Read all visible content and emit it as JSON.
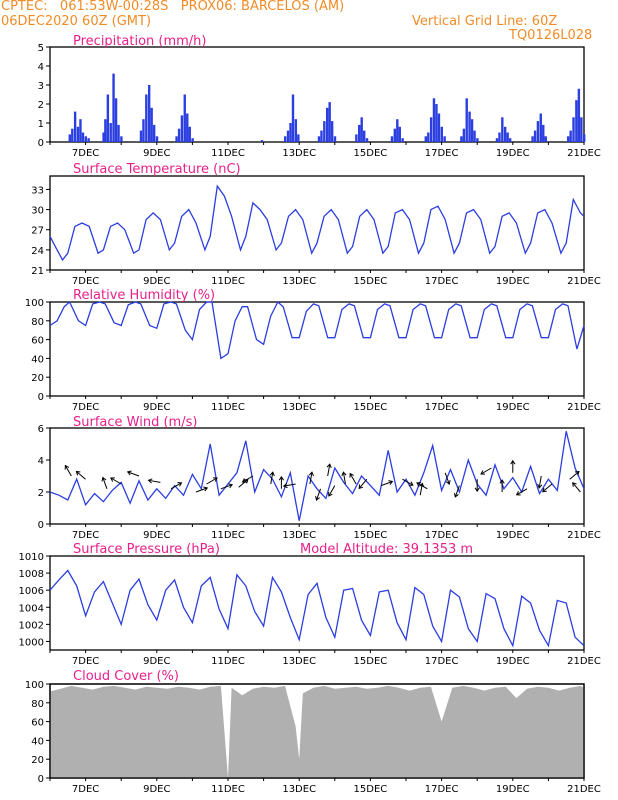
{
  "header": {
    "line1_left": "CPTEC:   061:53W-00:28S   PROX06: BARCELOS (AM)",
    "line2_left": "06DEC2020 60Z (GMT)",
    "line2_right": "Vertical Grid Line: 60Z",
    "line3_right": "TQ0126L028"
  },
  "colors": {
    "header": "#f08c28",
    "title": "#e8208a",
    "series": "#2b3ee0",
    "cloud": "#b0b0b0",
    "axis": "#000000"
  },
  "x_axis": {
    "start_date": "06DEC2020",
    "tick_labels": [
      "7DEC",
      "9DEC",
      "11DEC",
      "13DEC",
      "15DEC",
      "17DEC",
      "19DEC",
      "21DEC"
    ],
    "tick_days": [
      7,
      9,
      11,
      13,
      15,
      17,
      19,
      21
    ]
  },
  "chart_data": [
    {
      "id": "precip",
      "type": "bar",
      "title": "Precipitation (mm/h)",
      "ylim": [
        0,
        5
      ],
      "yticks": [
        "0",
        "1",
        "2",
        "3",
        "4",
        "5"
      ],
      "series": [
        {
          "x": [
            6.55,
            6.62,
            6.7,
            6.78,
            6.85,
            6.92,
            7.0,
            7.08,
            7.5,
            7.55,
            7.62,
            7.7,
            7.78,
            7.85,
            7.92,
            8.0,
            8.55,
            8.62,
            8.7,
            8.78,
            8.85,
            8.92,
            9.0,
            9.55,
            9.62,
            9.7,
            9.78,
            9.85,
            9.92,
            10.0,
            11.95,
            12.6,
            12.68,
            12.75,
            12.82,
            12.9,
            12.97,
            13.55,
            13.62,
            13.7,
            13.78,
            13.85,
            13.92,
            14.0,
            14.6,
            14.68,
            14.75,
            14.82,
            14.9,
            15.6,
            15.68,
            15.75,
            15.82,
            15.9,
            16.55,
            16.62,
            16.7,
            16.78,
            16.85,
            16.92,
            17.0,
            17.08,
            17.55,
            17.62,
            17.7,
            17.78,
            17.85,
            17.92,
            18.0,
            18.55,
            18.62,
            18.7,
            18.78,
            18.85,
            18.92,
            19.55,
            19.62,
            19.7,
            19.78,
            19.85,
            19.92,
            20.55,
            20.62,
            20.7,
            20.78,
            20.85,
            20.92,
            21.0
          ],
          "values": [
            0.4,
            0.7,
            1.6,
            0.8,
            1.2,
            0.5,
            0.3,
            0.2,
            0.5,
            1.2,
            2.5,
            1.0,
            3.6,
            2.3,
            0.9,
            0.3,
            0.6,
            1.2,
            2.5,
            3.0,
            1.8,
            0.9,
            0.3,
            0.3,
            0.7,
            1.4,
            2.5,
            1.5,
            0.8,
            0.2,
            0.1,
            0.3,
            0.6,
            1.0,
            2.5,
            1.2,
            0.4,
            0.3,
            0.6,
            1.1,
            1.8,
            2.1,
            1.1,
            0.3,
            0.4,
            0.9,
            1.3,
            0.6,
            0.2,
            0.3,
            0.7,
            1.2,
            0.8,
            0.2,
            0.3,
            0.5,
            1.3,
            2.3,
            2.0,
            1.5,
            0.8,
            0.3,
            0.3,
            0.7,
            2.3,
            1.6,
            1.2,
            0.6,
            0.2,
            0.2,
            0.5,
            1.3,
            0.8,
            0.5,
            0.2,
            0.3,
            0.6,
            1.1,
            1.5,
            0.9,
            0.3,
            0.3,
            0.6,
            1.3,
            2.2,
            2.8,
            1.3,
            0.4
          ]
        }
      ]
    },
    {
      "id": "temp",
      "type": "line",
      "title": "Surface Temperature (nC)",
      "ylim": [
        21,
        35
      ],
      "yticks": [
        "21",
        "24",
        "27",
        "30",
        "33"
      ],
      "series": [
        {
          "x": [
            6.0,
            6.2,
            6.35,
            6.5,
            6.7,
            6.9,
            7.1,
            7.35,
            7.5,
            7.7,
            7.9,
            8.1,
            8.35,
            8.5,
            8.7,
            8.9,
            9.1,
            9.35,
            9.5,
            9.7,
            9.9,
            10.1,
            10.35,
            10.5,
            10.7,
            10.9,
            11.1,
            11.35,
            11.5,
            11.7,
            11.9,
            12.1,
            12.35,
            12.5,
            12.7,
            12.9,
            13.1,
            13.35,
            13.5,
            13.7,
            13.9,
            14.1,
            14.35,
            14.5,
            14.7,
            14.9,
            15.1,
            15.35,
            15.5,
            15.7,
            15.9,
            16.1,
            16.35,
            16.5,
            16.7,
            16.9,
            17.1,
            17.35,
            17.5,
            17.7,
            17.9,
            18.1,
            18.35,
            18.5,
            18.7,
            18.9,
            19.1,
            19.35,
            19.5,
            19.7,
            19.9,
            20.1,
            20.35,
            20.5,
            20.7,
            20.9,
            21.0
          ],
          "values": [
            26.0,
            24.0,
            22.5,
            23.5,
            27.5,
            28.0,
            27.5,
            23.5,
            24.0,
            27.5,
            28.0,
            27.0,
            23.5,
            24.0,
            28.5,
            29.5,
            28.5,
            24.0,
            25.0,
            29.0,
            30.0,
            28.0,
            24.0,
            26.0,
            33.5,
            32.0,
            29.0,
            24.0,
            26.0,
            31.0,
            30.0,
            28.5,
            24.0,
            25.0,
            29.0,
            30.0,
            28.5,
            23.5,
            25.0,
            29.0,
            30.0,
            28.5,
            23.5,
            24.5,
            29.0,
            30.0,
            28.5,
            23.5,
            24.5,
            29.5,
            30.0,
            28.5,
            23.5,
            25.0,
            30.0,
            30.5,
            28.5,
            23.5,
            25.0,
            29.5,
            30.0,
            28.5,
            23.5,
            24.5,
            29.0,
            29.5,
            28.0,
            23.5,
            25.0,
            29.5,
            30.0,
            28.0,
            23.5,
            25.0,
            31.5,
            29.5,
            29.0
          ]
        }
      ]
    },
    {
      "id": "rh",
      "type": "line",
      "title": "Relative Humidity (%)",
      "ylim": [
        0,
        100
      ],
      "yticks": [
        "0",
        "20",
        "40",
        "60",
        "80",
        "100"
      ],
      "series": [
        {
          "x": [
            6.0,
            6.2,
            6.4,
            6.55,
            6.8,
            7.0,
            7.2,
            7.4,
            7.55,
            7.8,
            8.0,
            8.2,
            8.4,
            8.55,
            8.8,
            9.0,
            9.2,
            9.4,
            9.55,
            9.8,
            10.0,
            10.2,
            10.4,
            10.55,
            10.8,
            11.0,
            11.2,
            11.4,
            11.55,
            11.8,
            12.0,
            12.2,
            12.4,
            12.55,
            12.8,
            13.0,
            13.2,
            13.4,
            13.55,
            13.8,
            14.0,
            14.2,
            14.4,
            14.55,
            14.8,
            15.0,
            15.2,
            15.4,
            15.55,
            15.8,
            16.0,
            16.2,
            16.4,
            16.55,
            16.8,
            17.0,
            17.2,
            17.4,
            17.55,
            17.8,
            18.0,
            18.2,
            18.4,
            18.55,
            18.8,
            19.0,
            19.2,
            19.4,
            19.55,
            19.8,
            20.0,
            20.2,
            20.4,
            20.55,
            20.8,
            21.0
          ],
          "values": [
            75,
            80,
            95,
            100,
            80,
            75,
            98,
            100,
            98,
            78,
            75,
            97,
            100,
            98,
            75,
            72,
            98,
            100,
            98,
            70,
            60,
            92,
            100,
            100,
            40,
            45,
            80,
            95,
            95,
            60,
            55,
            85,
            100,
            95,
            62,
            62,
            90,
            98,
            96,
            62,
            62,
            92,
            98,
            96,
            62,
            62,
            92,
            98,
            96,
            62,
            62,
            92,
            98,
            96,
            62,
            62,
            92,
            98,
            96,
            62,
            62,
            92,
            98,
            96,
            62,
            62,
            92,
            98,
            96,
            62,
            62,
            92,
            98,
            96,
            50,
            75
          ]
        }
      ]
    },
    {
      "id": "wind",
      "type": "line",
      "title": "Surface Wind (m/s)",
      "ylim": [
        0,
        6
      ],
      "yticks": [
        "0",
        "2",
        "4",
        "6"
      ],
      "series": [
        {
          "x": [
            6.0,
            6.25,
            6.5,
            6.75,
            7.0,
            7.25,
            7.5,
            7.75,
            8.0,
            8.25,
            8.5,
            8.75,
            9.0,
            9.25,
            9.5,
            9.75,
            10.0,
            10.25,
            10.5,
            10.75,
            11.0,
            11.25,
            11.5,
            11.75,
            12.0,
            12.25,
            12.5,
            12.75,
            13.0,
            13.25,
            13.5,
            13.75,
            14.0,
            14.25,
            14.5,
            14.75,
            15.0,
            15.25,
            15.5,
            15.75,
            16.0,
            16.25,
            16.5,
            16.75,
            17.0,
            17.25,
            17.5,
            17.75,
            18.0,
            18.25,
            18.5,
            18.75,
            19.0,
            19.25,
            19.5,
            19.75,
            20.0,
            20.25,
            20.5,
            20.75,
            21.0
          ],
          "values": [
            2.0,
            1.8,
            1.5,
            2.8,
            1.2,
            1.9,
            1.4,
            2.1,
            2.6,
            1.3,
            2.7,
            1.5,
            2.2,
            1.6,
            2.4,
            1.8,
            3.1,
            2.2,
            5.0,
            1.8,
            2.5,
            3.2,
            5.2,
            2.0,
            3.4,
            2.8,
            1.7,
            3.2,
            0.2,
            3.0,
            2.2,
            1.6,
            3.5,
            2.6,
            1.9,
            3.0,
            2.4,
            1.8,
            4.6,
            2.0,
            2.8,
            1.8,
            3.2,
            4.9,
            2.1,
            3.4,
            2.0,
            4.0,
            2.5,
            1.8,
            3.7,
            2.2,
            2.9,
            2.0,
            3.6,
            1.9,
            2.8,
            2.1,
            5.8,
            3.5,
            2.2
          ]
        }
      ],
      "arrows": {
        "x": [
          6.6,
          7.0,
          7.6,
          8.0,
          8.5,
          9.1,
          9.4,
          10.1,
          10.4,
          10.8,
          11.3,
          11.7,
          12.2,
          12.5,
          12.9,
          13.3,
          13.6,
          13.8,
          14.0,
          14.3,
          14.6,
          14.9,
          15.3,
          15.9,
          16.4,
          16.6,
          17.1,
          17.5,
          18.0,
          18.4,
          18.7,
          19.0,
          19.4,
          19.8,
          20.1,
          20.6,
          20.9
        ],
        "y": [
          3.0,
          2.8,
          2.2,
          2.5,
          3.0,
          2.6,
          2.2,
          2.0,
          2.5,
          2.2,
          2.3,
          3.0,
          2.5,
          2.2,
          2.5,
          2.5,
          2.2,
          3.0,
          2.4,
          2.5,
          2.5,
          2.8,
          2.4,
          2.8,
          1.8,
          2.2,
          3.2,
          2.4,
          2.8,
          3.5,
          2.0,
          3.2,
          2.2,
          3.0,
          2.5,
          2.8,
          2.0
        ],
        "angle": [
          -120,
          -140,
          -110,
          -150,
          -160,
          -170,
          -30,
          -20,
          -30,
          -20,
          -40,
          150,
          -80,
          -90,
          170,
          -80,
          110,
          -80,
          120,
          -100,
          -120,
          130,
          -20,
          30,
          -80,
          -150,
          70,
          110,
          90,
          150,
          -90,
          -90,
          150,
          100,
          140,
          -40,
          -130
        ]
      }
    },
    {
      "id": "pres",
      "type": "line",
      "title": "Surface Pressure (hPa)",
      "annotation": "Model Altitude: 39.1353 m",
      "ylim": [
        999,
        1010
      ],
      "yticks": [
        "1000",
        "1002",
        "1004",
        "1006",
        "1008",
        "1010"
      ],
      "series": [
        {
          "x": [
            6.0,
            6.25,
            6.5,
            6.75,
            7.0,
            7.25,
            7.5,
            7.75,
            8.0,
            8.25,
            8.5,
            8.75,
            9.0,
            9.25,
            9.5,
            9.75,
            10.0,
            10.25,
            10.5,
            10.75,
            11.0,
            11.25,
            11.5,
            11.75,
            12.0,
            12.25,
            12.5,
            12.75,
            13.0,
            13.25,
            13.5,
            13.75,
            14.0,
            14.25,
            14.5,
            14.75,
            15.0,
            15.25,
            15.5,
            15.75,
            16.0,
            16.25,
            16.5,
            16.75,
            17.0,
            17.25,
            17.5,
            17.75,
            18.0,
            18.25,
            18.5,
            18.75,
            19.0,
            19.25,
            19.5,
            19.75,
            20.0,
            20.25,
            20.5,
            20.75,
            21.0
          ],
          "values": [
            1006.0,
            1007.2,
            1008.3,
            1006.5,
            1003.0,
            1005.8,
            1007.0,
            1004.5,
            1002.0,
            1006.0,
            1007.3,
            1004.3,
            1002.5,
            1006.0,
            1007.2,
            1004.0,
            1002.2,
            1006.5,
            1007.5,
            1003.8,
            1001.5,
            1007.8,
            1006.5,
            1003.5,
            1001.8,
            1007.5,
            1005.8,
            1002.8,
            1000.2,
            1005.5,
            1006.8,
            1002.8,
            1000.5,
            1006.0,
            1006.2,
            1002.5,
            1000.7,
            1005.8,
            1006.0,
            1002.2,
            1000.2,
            1006.3,
            1005.5,
            1001.8,
            1000.0,
            1006.0,
            1005.2,
            1001.5,
            1000.0,
            1005.6,
            1005.0,
            1001.5,
            999.5,
            1005.3,
            1004.5,
            1001.3,
            999.5,
            1004.8,
            1004.5,
            1000.5,
            999.5
          ]
        }
      ]
    },
    {
      "id": "cloud",
      "type": "area",
      "title": "Cloud Cover (%)",
      "ylim": [
        0,
        100
      ],
      "yticks": [
        "0",
        "20",
        "40",
        "60",
        "80",
        "100"
      ],
      "series": [
        {
          "x": [
            6.0,
            6.3,
            6.6,
            6.9,
            7.2,
            7.5,
            7.8,
            8.1,
            8.4,
            8.7,
            9.0,
            9.3,
            9.6,
            9.9,
            10.2,
            10.5,
            10.8,
            11.0,
            11.1,
            11.4,
            11.7,
            12.0,
            12.3,
            12.6,
            12.9,
            13.0,
            13.1,
            13.4,
            13.7,
            14.0,
            14.3,
            14.6,
            14.9,
            15.2,
            15.5,
            15.8,
            16.1,
            16.4,
            16.7,
            17.0,
            17.3,
            17.6,
            17.9,
            18.2,
            18.5,
            18.8,
            19.1,
            19.4,
            19.7,
            20.0,
            20.3,
            20.6,
            20.9,
            21.0
          ],
          "values": [
            92,
            95,
            98,
            96,
            94,
            97,
            98,
            96,
            94,
            97,
            96,
            95,
            97,
            96,
            94,
            97,
            98,
            0,
            96,
            88,
            95,
            97,
            96,
            98,
            55,
            20,
            90,
            96,
            98,
            95,
            96,
            97,
            95,
            96,
            98,
            96,
            93,
            96,
            97,
            60,
            96,
            98,
            96,
            93,
            96,
            97,
            85,
            95,
            97,
            96,
            93,
            96,
            98,
            96
          ]
        }
      ]
    }
  ]
}
